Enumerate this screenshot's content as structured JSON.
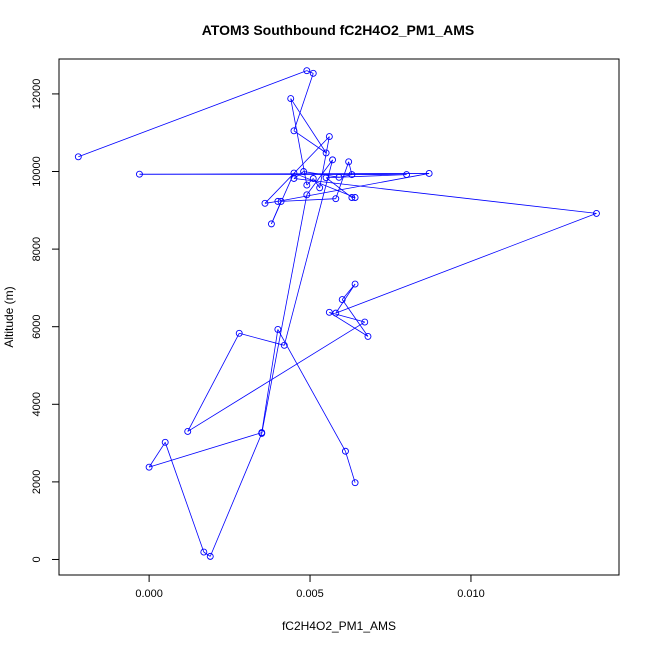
{
  "chart_data": {
    "type": "line",
    "title": "ATOM3 Southbound fC2H4O2_PM1_AMS",
    "xlabel": "fC2H4O2_PM1_AMS",
    "ylabel": "Altitude (m)",
    "xlim": [
      -0.0028,
      0.0146
    ],
    "ylim": [
      -400,
      12900
    ],
    "xticks": [
      0.0,
      0.005,
      0.01
    ],
    "xtick_labels": [
      "0.000",
      "0.005",
      "0.010"
    ],
    "yticks": [
      0,
      2000,
      4000,
      6000,
      8000,
      10000,
      12000
    ],
    "ytick_labels": [
      "0",
      "2000",
      "4000",
      "6000",
      "8000",
      "10000",
      "12000"
    ],
    "grid": false,
    "markers": "open-circle",
    "color": "#0000ff",
    "series": [
      {
        "x": [
          -0.0022,
          0.0049,
          0.0051,
          0.0045,
          0.0055,
          0.0044,
          0.0049,
          0.0051,
          0.0053,
          0.0056,
          0.0036,
          0.004,
          0.0087,
          -0.0003,
          0.008,
          0.0055,
          0.0063,
          0.0064,
          0.0045,
          0.0038,
          0.0041,
          0.0058,
          0.0062,
          0.0063,
          0.0059,
          0.0048,
          0.0045,
          0.0139,
          0.0058,
          0.0064,
          0.006,
          0.0068,
          0.0056,
          0.0067,
          0.0012,
          0.0028,
          0.0042,
          0.0057,
          0.0049,
          0.0035,
          0.0019,
          0.0017,
          0.0005,
          0.0,
          0.0035,
          0.004,
          0.0061,
          0.0064
        ],
        "y": [
          10380,
          12600,
          12530,
          11050,
          10480,
          11880,
          9650,
          9820,
          9580,
          10900,
          9180,
          9230,
          9950,
          9930,
          9920,
          9840,
          9330,
          9330,
          9960,
          8650,
          9230,
          9300,
          10250,
          9920,
          9850,
          10000,
          9820,
          8920,
          6350,
          7100,
          6700,
          5750,
          6370,
          6120,
          3300,
          5830,
          5520,
          10300,
          9400,
          3250,
          80,
          190,
          3020,
          2380,
          3270,
          5930,
          2790,
          1980
        ]
      }
    ]
  }
}
